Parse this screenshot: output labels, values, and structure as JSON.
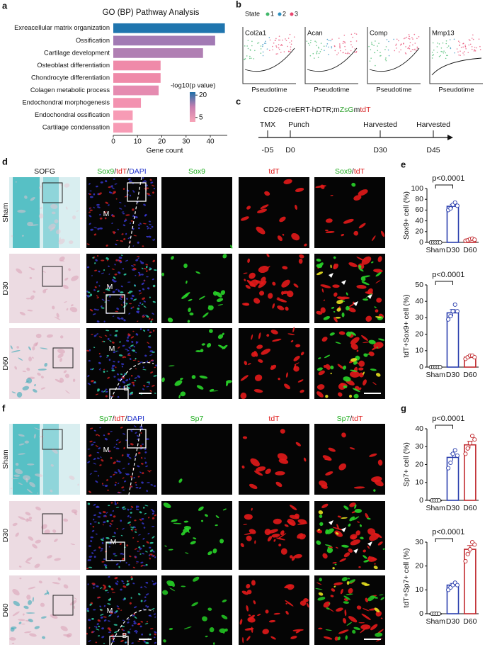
{
  "panel_labels": [
    "a",
    "b",
    "c",
    "d",
    "e",
    "f",
    "g"
  ],
  "chart_data": [
    {
      "type": "barh",
      "title": "GO (BP) Pathway Analysis",
      "categories": [
        "Exreacellular matrix organization",
        "Ossification",
        "Cartilage development",
        "Osteoblast differentiation",
        "Chondrocyte differentiation",
        "Colagen metabolic process",
        "Endochondral morphogenesis",
        "Endochondral ossification",
        "Cartilage condensation"
      ],
      "values": [
        46,
        42,
        37,
        19.5,
        19.5,
        18.7,
        11.4,
        8,
        8
      ],
      "colors": [
        "#1f75ae",
        "#a27ab4",
        "#b07fb3",
        "#ef8aa9",
        "#ef8aa9",
        "#e58bb0",
        "#f392b0",
        "#f79bb5",
        "#f79bb5"
      ],
      "xlim": [
        0,
        47
      ],
      "xticks": [
        0,
        10,
        20,
        30,
        40
      ],
      "xlabel": "Gene count",
      "colorbar": {
        "title": "-log10(p value)",
        "lim": [
          2,
          22
        ],
        "ticks": [
          20,
          5
        ],
        "colors": [
          "#f7a3b6",
          "#c87fb0",
          "#1f6fa8"
        ]
      }
    },
    {
      "type": "dotbar",
      "ylabel": "Sox9+ cell (%)",
      "categories": [
        "Sham",
        "D30",
        "D60"
      ],
      "values": [
        0,
        67,
        5
      ],
      "errors": [
        0.3,
        3.5,
        1
      ],
      "colors": [
        "#222222",
        "#2b3fae",
        "#c0282d"
      ],
      "points": [
        [
          0,
          0,
          0,
          0,
          0
        ],
        [
          60,
          63,
          70,
          74,
          68
        ],
        [
          3,
          4,
          6,
          7,
          5
        ]
      ],
      "ylim": [
        0,
        100
      ],
      "yticks": [
        0,
        20,
        40,
        60,
        80,
        100
      ],
      "annotation": "p<0.0001"
    },
    {
      "type": "dotbar",
      "ylabel": "tdT+Sox9+ cell (%)",
      "categories": [
        "Sham",
        "D30",
        "D60"
      ],
      "values": [
        0,
        33,
        6
      ],
      "errors": [
        0.2,
        2,
        0.7
      ],
      "colors": [
        "#222222",
        "#2b3fae",
        "#c0282d"
      ],
      "points": [
        [
          0,
          0,
          0,
          0,
          0
        ],
        [
          29,
          31,
          34,
          38,
          34
        ],
        [
          5,
          6,
          7,
          7,
          6
        ]
      ],
      "ylim": [
        0,
        50
      ],
      "yticks": [
        0,
        10,
        20,
        30,
        40,
        50
      ],
      "annotation": "p<0.0001"
    },
    {
      "type": "dotbar",
      "ylabel": "Sp7+ cell (%)",
      "categories": [
        "Sham",
        "D30",
        "D60"
      ],
      "values": [
        0,
        24,
        31
      ],
      "errors": [
        0.2,
        2,
        2
      ],
      "colors": [
        "#222222",
        "#2b3fae",
        "#c0282d"
      ],
      "points": [
        [
          0,
          0,
          0,
          0
        ],
        [
          18,
          21,
          26,
          28,
          25
        ],
        [
          26,
          29,
          32,
          36,
          34
        ]
      ],
      "ylim": [
        0,
        40
      ],
      "yticks": [
        0,
        10,
        20,
        30,
        40
      ],
      "annotation": "p<0.0001"
    },
    {
      "type": "dotbar",
      "ylabel": "tdT+Sp7+ cell (%)",
      "categories": [
        "Sham",
        "D30",
        "D60"
      ],
      "values": [
        0,
        12,
        27
      ],
      "errors": [
        0.2,
        0.7,
        1.6
      ],
      "colors": [
        "#222222",
        "#2b3fae",
        "#c0282d"
      ],
      "points": [
        [
          0,
          0,
          0,
          0
        ],
        [
          10,
          11,
          12,
          13,
          12
        ],
        [
          22,
          25,
          27,
          30,
          29
        ]
      ],
      "ylim": [
        0,
        30
      ],
      "yticks": [
        0,
        10,
        20,
        30
      ],
      "annotation": "p<0.0001"
    }
  ],
  "pseudotime": {
    "legend_title": "State",
    "states": [
      "1",
      "2",
      "3"
    ],
    "state_colors": [
      "#41b86a",
      "#2c8fbf",
      "#e8466e"
    ],
    "plots": [
      {
        "gene": "Col2a1",
        "xlabel": "Pseudotime"
      },
      {
        "gene": "Acan",
        "xlabel": "Pseudotime"
      },
      {
        "gene": "Comp",
        "xlabel": "Pseudotime"
      },
      {
        "gene": "Mmp13",
        "xlabel": "Pseudotime"
      }
    ]
  },
  "timeline": {
    "title_parts": [
      {
        "text": "CD26-creERT-hDTR;m",
        "color": "#111111"
      },
      {
        "text": "ZsG",
        "color": "#2ca02c"
      },
      {
        "text": "m",
        "color": "#111111"
      },
      {
        "text": "tdT",
        "color": "#d62728"
      }
    ],
    "events": [
      {
        "above": "TMX",
        "below": "-D5"
      },
      {
        "above": "Punch",
        "below": "D0"
      },
      {
        "above": "Harvested",
        "below": "D30"
      },
      {
        "above": "Harvested",
        "below": "D45"
      }
    ]
  },
  "image_grids": [
    {
      "headers": [
        [
          {
            "text": "SOFG",
            "color": "#111111"
          }
        ],
        [
          {
            "text": "Sox9",
            "color": "#1fae1f"
          },
          {
            "text": "/",
            "color": "#111111"
          },
          {
            "text": "tdT",
            "color": "#e01b1b"
          },
          {
            "text": "/",
            "color": "#111111"
          },
          {
            "text": "DAPI",
            "color": "#2233cc"
          }
        ],
        [
          {
            "text": "Sox9",
            "color": "#1fae1f"
          }
        ],
        [
          {
            "text": "tdT",
            "color": "#e01b1b"
          }
        ],
        [
          {
            "text": "Sox9",
            "color": "#1fae1f"
          },
          {
            "text": "/",
            "color": "#111111"
          },
          {
            "text": "tdT",
            "color": "#e01b1b"
          }
        ]
      ],
      "rows": [
        "Sham",
        "D30",
        "D60"
      ],
      "region_labels": [
        "M",
        "M",
        "M",
        "B"
      ]
    },
    {
      "headers": [
        [],
        [
          {
            "text": "Sp7",
            "color": "#1fae1f"
          },
          {
            "text": "/",
            "color": "#111111"
          },
          {
            "text": "tdT",
            "color": "#e01b1b"
          },
          {
            "text": "/",
            "color": "#111111"
          },
          {
            "text": "DAPI",
            "color": "#2233cc"
          }
        ],
        [
          {
            "text": "Sp7",
            "color": "#1fae1f"
          }
        ],
        [
          {
            "text": "tdT",
            "color": "#e01b1b"
          }
        ],
        [
          {
            "text": "Sp7",
            "color": "#1fae1f"
          },
          {
            "text": "/",
            "color": "#111111"
          },
          {
            "text": "tdT",
            "color": "#e01b1b"
          }
        ]
      ],
      "rows": [
        "Sham",
        "D30",
        "D60"
      ],
      "region_labels": [
        "M",
        "M",
        "M",
        "B"
      ]
    }
  ]
}
